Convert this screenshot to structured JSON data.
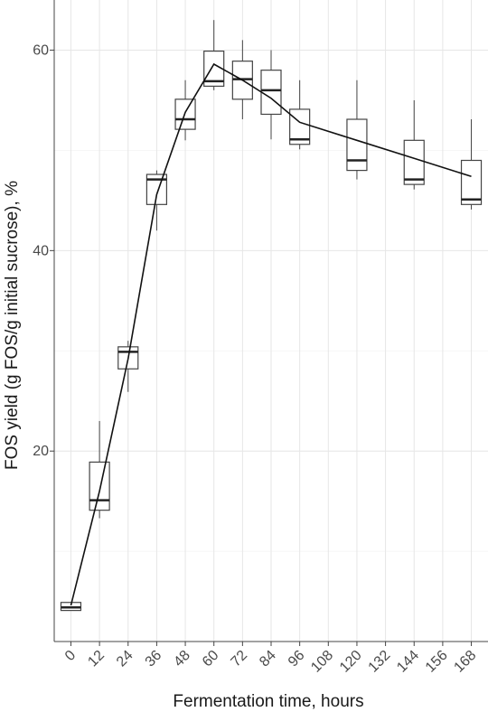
{
  "chart_data": {
    "type": "box",
    "xlabel": "Fermentation time, hours",
    "ylabel": "FOS yield (g FOS/g initial sucrose), %",
    "xlim": [
      -7,
      175
    ],
    "ylim": [
      1,
      65
    ],
    "x_ticks": [
      0,
      12,
      24,
      36,
      48,
      60,
      72,
      84,
      96,
      108,
      120,
      132,
      144,
      156,
      168
    ],
    "y_ticks": [
      20,
      40,
      60
    ],
    "grid": true,
    "boxes": [
      {
        "x": 0,
        "min": 4.1,
        "q1": 4.1,
        "median": 4.4,
        "q3": 4.9,
        "max": 4.9
      },
      {
        "x": 12,
        "min": 13.3,
        "q1": 14.1,
        "median": 15.1,
        "q3": 18.9,
        "max": 23.0
      },
      {
        "x": 24,
        "min": 25.9,
        "q1": 28.2,
        "median": 29.9,
        "q3": 30.4,
        "max": 31.0
      },
      {
        "x": 36,
        "min": 42.0,
        "q1": 44.6,
        "median": 47.1,
        "q3": 47.6,
        "max": 48.0
      },
      {
        "x": 48,
        "min": 51.0,
        "q1": 52.1,
        "median": 53.1,
        "q3": 55.1,
        "max": 57.0
      },
      {
        "x": 60,
        "min": 56.0,
        "q1": 56.4,
        "median": 56.9,
        "q3": 59.9,
        "max": 63.0
      },
      {
        "x": 72,
        "min": 53.1,
        "q1": 55.1,
        "median": 57.1,
        "q3": 58.9,
        "max": 61.0
      },
      {
        "x": 84,
        "min": 51.1,
        "q1": 53.6,
        "median": 56.0,
        "q3": 58.0,
        "max": 60.0
      },
      {
        "x": 96,
        "min": 50.1,
        "q1": 50.6,
        "median": 51.1,
        "q3": 54.1,
        "max": 57.0
      },
      {
        "x": 120,
        "min": 47.1,
        "q1": 48.0,
        "median": 49.0,
        "q3": 53.1,
        "max": 57.0
      },
      {
        "x": 144,
        "min": 46.1,
        "q1": 46.6,
        "median": 47.1,
        "q3": 51.0,
        "max": 55.0
      },
      {
        "x": 168,
        "min": 44.1,
        "q1": 44.6,
        "median": 45.1,
        "q3": 49.0,
        "max": 53.1
      }
    ],
    "mean_line": {
      "x": [
        0,
        12,
        24,
        36,
        48,
        60,
        72,
        84,
        96,
        120,
        144,
        168
      ],
      "y": [
        4.6,
        16.0,
        29.2,
        45.6,
        53.8,
        58.6,
        57.0,
        55.2,
        52.8,
        51.0,
        49.2,
        47.4
      ]
    }
  }
}
